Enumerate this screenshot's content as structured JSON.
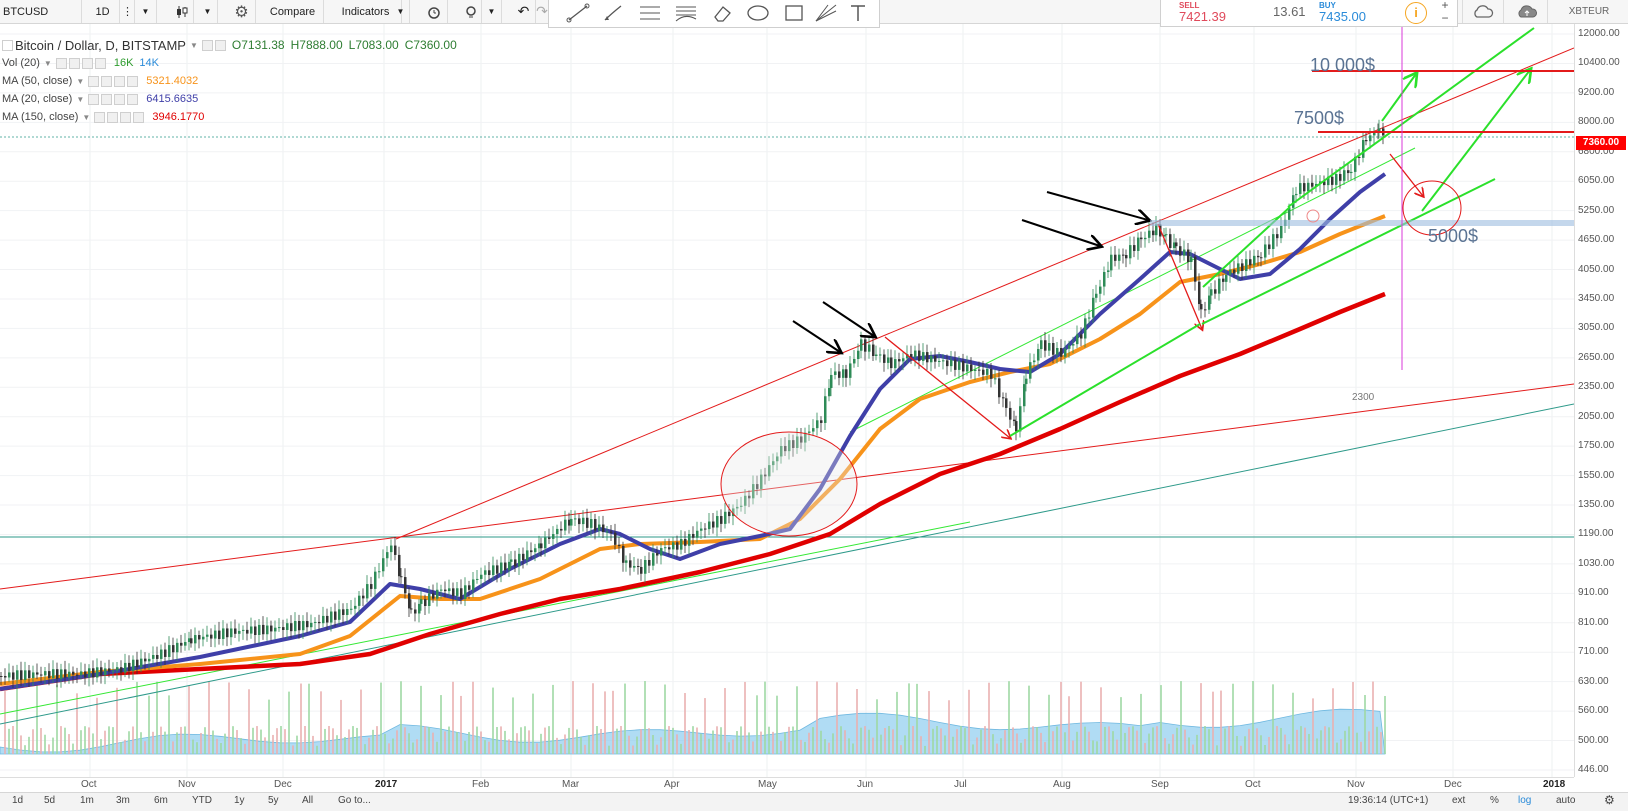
{
  "toolbar": {
    "symbol": "BTCUSD",
    "interval": "1D",
    "compare_label": "Compare",
    "indicators_label": "Indicators",
    "icons": [
      "chart-style-icon",
      "settings-icon",
      "alert-icon",
      "idea-icon",
      "undo-icon",
      "redo-icon"
    ],
    "drawing_tools": [
      "trendline-icon",
      "brush-icon",
      "pitchfork-icon",
      "fib-icon",
      "eraser-icon",
      "ellipse-icon",
      "rectangle-icon",
      "gann-icon",
      "text-icon"
    ],
    "trade": {
      "sell_label": "SELL",
      "sell_price": "7421.39",
      "spread": "13.61",
      "buy_label": "BUY",
      "buy_price": "7435.00"
    },
    "right_symbol": "XBTEUR"
  },
  "legend": {
    "main": {
      "title": "Bitcoin / Dollar, D, BITSTAMP",
      "open": "O7131.38",
      "high": "H7888.00",
      "low": "L7083.00",
      "close": "C7360.00"
    },
    "indicators": [
      {
        "name": "Vol (20)",
        "values": [
          "16K",
          "14K"
        ],
        "colors": [
          "#2e9c2e",
          "#2a8bd9"
        ]
      },
      {
        "name": "MA (50, close)",
        "values": [
          "5321.4032"
        ],
        "colors": [
          "#f7931a"
        ]
      },
      {
        "name": "MA (20, close)",
        "values": [
          "6415.6635"
        ],
        "colors": [
          "#3f3fa8"
        ]
      },
      {
        "name": "MA (150, close)",
        "values": [
          "3946.1770"
        ],
        "colors": [
          "#e00000"
        ]
      }
    ]
  },
  "price_axis": {
    "ticks": [
      "12000.00",
      "10400.00",
      "9200.00",
      "8000.00",
      "6800.00",
      "6050.00",
      "5250.00",
      "4650.00",
      "4050.00",
      "3450.00",
      "3050.00",
      "2650.00",
      "2350.00",
      "2050.00",
      "1750.00",
      "1550.00",
      "1350.00",
      "1190.00",
      "1030.00",
      "910.00",
      "810.00",
      "710.00",
      "630.00",
      "560.00",
      "500.00",
      "446.00"
    ],
    "last_price": "7360.00"
  },
  "time_axis": {
    "ticks": [
      {
        "label": "Oct",
        "bold": false
      },
      {
        "label": "Nov",
        "bold": false
      },
      {
        "label": "Dec",
        "bold": false
      },
      {
        "label": "2017",
        "bold": true
      },
      {
        "label": "Feb",
        "bold": false
      },
      {
        "label": "Mar",
        "bold": false
      },
      {
        "label": "Apr",
        "bold": false
      },
      {
        "label": "May",
        "bold": false
      },
      {
        "label": "Jun",
        "bold": false
      },
      {
        "label": "Jul",
        "bold": false
      },
      {
        "label": "Aug",
        "bold": false
      },
      {
        "label": "Sep",
        "bold": false
      },
      {
        "label": "Oct",
        "bold": false
      },
      {
        "label": "Nov",
        "bold": false
      },
      {
        "label": "Dec",
        "bold": false
      },
      {
        "label": "2018",
        "bold": true
      }
    ]
  },
  "bottombar": {
    "ranges": [
      "1d",
      "5d",
      "1m",
      "3m",
      "6m",
      "YTD",
      "1y",
      "5y",
      "All"
    ],
    "goto_label": "Go to...",
    "clock": "19:36:14 (UTC+1)",
    "ext": "ext",
    "percent": "%",
    "log": "log",
    "auto": "auto"
  },
  "annotations": {
    "target_high": "10 000$",
    "target_mid": "7500$",
    "target_low": "5000$",
    "note": "2300"
  },
  "colors": {
    "ma50": "#f7931a",
    "ma20": "#3f3fa8",
    "ma150": "#e00000",
    "trend_red": "#e31b1b",
    "trend_green": "#34e834",
    "teal_line": "#2e9a8a",
    "candle_up": "#2e8b57",
    "candle_down": "#333333",
    "volume_fill": "#8fcdf0"
  }
}
